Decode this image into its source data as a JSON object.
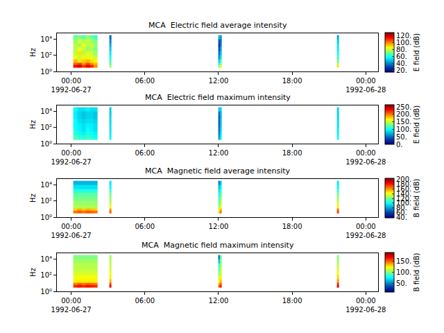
{
  "chart_data": [
    {
      "type": "heatmap",
      "title": "MCA  Electric field average intensity",
      "ylabel": "Hz",
      "colorbar_title": "E field (dB)",
      "log": "y",
      "x": [
        "1992-06-27 00:10",
        "1992-06-27 00:30",
        "1992-06-27 00:50",
        "1992-06-27 01:10",
        "1992-06-27 01:30",
        "1992-06-27 01:50",
        "1992-06-27 02:10",
        "1992-06-27 03:05",
        "1992-06-27 03:15",
        "1992-06-27 12:00",
        "1992-06-27 12:05",
        "1992-06-27 12:10",
        "1992-06-27 12:15",
        "1992-06-27 21:40",
        "1992-06-27 21:50"
      ],
      "y": [
        3,
        6,
        12,
        30,
        100,
        300,
        1000,
        3000,
        10000,
        30000
      ],
      "xlim": [
        "1992-06-26 22:50",
        "1992-06-28 01:00"
      ],
      "xticks": [
        {
          "value": "1992-06-27 00:00",
          "label": "00:00\n1992-06-27"
        },
        {
          "value": "1992-06-27 06:00",
          "label": "06:00"
        },
        {
          "value": "1992-06-27 12:00",
          "label": "12:00"
        },
        {
          "value": "1992-06-27 18:00",
          "label": "18:00"
        },
        {
          "value": "1992-06-28 00:00",
          "label": "00:00\n1992-06-28"
        }
      ],
      "ylim": [
        1,
        50000
      ],
      "yticks": [
        {
          "value": 1,
          "label": "10⁰"
        },
        {
          "value": 100,
          "label": "10²"
        },
        {
          "value": 10000,
          "label": "10⁴"
        }
      ],
      "zlim": [
        15,
        130
      ],
      "zticks": [
        {
          "value": 20,
          "label": "20."
        },
        {
          "value": 40,
          "label": "40."
        },
        {
          "value": 60,
          "label": "60."
        },
        {
          "value": 80,
          "label": "80."
        },
        {
          "value": 100,
          "label": "100."
        },
        {
          "value": 120,
          "label": "120."
        }
      ],
      "z": [
        [
          115,
          120,
          110,
          118,
          112,
          100,
          null,
          75,
          null,
          70,
          80,
          85,
          null,
          90
        ],
        [
          105,
          110,
          100,
          108,
          100,
          95,
          null,
          70,
          null,
          60,
          70,
          75,
          null,
          80
        ],
        [
          95,
          90,
          92,
          95,
          90,
          88,
          null,
          65,
          null,
          50,
          60,
          65,
          null,
          70
        ],
        [
          85,
          80,
          88,
          82,
          85,
          80,
          null,
          60,
          null,
          40,
          50,
          55,
          null,
          65
        ],
        [
          80,
          90,
          78,
          85,
          80,
          75,
          null,
          55,
          null,
          35,
          45,
          50,
          null,
          60
        ],
        [
          78,
          85,
          80,
          75,
          78,
          72,
          null,
          50,
          null,
          30,
          40,
          45,
          null,
          55
        ],
        [
          80,
          75,
          85,
          78,
          80,
          75,
          null,
          45,
          null,
          25,
          35,
          40,
          null,
          55
        ],
        [
          75,
          82,
          78,
          80,
          76,
          72,
          null,
          40,
          null,
          30,
          40,
          35,
          null,
          50
        ],
        [
          70,
          72,
          68,
          75,
          70,
          65,
          null,
          35,
          null,
          45,
          55,
          40,
          null,
          45
        ]
      ]
    },
    {
      "type": "heatmap",
      "title": "MCA  Electric field maximum intensity",
      "ylabel": "Hz",
      "colorbar_title": "E field (dB)",
      "log": "y",
      "x": [
        "1992-06-27 00:10",
        "1992-06-27 00:30",
        "1992-06-27 00:50",
        "1992-06-27 01:10",
        "1992-06-27 01:30",
        "1992-06-27 01:50",
        "1992-06-27 02:10",
        "1992-06-27 03:05",
        "1992-06-27 03:15",
        "1992-06-27 12:00",
        "1992-06-27 12:05",
        "1992-06-27 12:10",
        "1992-06-27 12:15",
        "1992-06-27 21:40",
        "1992-06-27 21:50"
      ],
      "y": [
        3,
        6,
        12,
        30,
        100,
        300,
        1000,
        3000,
        10000,
        30000
      ],
      "xlim": [
        "1992-06-26 22:50",
        "1992-06-28 01:00"
      ],
      "xticks": [
        {
          "value": "1992-06-27 00:00",
          "label": "00:00\n1992-06-27"
        },
        {
          "value": "1992-06-27 06:00",
          "label": "06:00"
        },
        {
          "value": "1992-06-27 12:00",
          "label": "12:00"
        },
        {
          "value": "1992-06-27 18:00",
          "label": "18:00"
        },
        {
          "value": "1992-06-28 00:00",
          "label": "00:00\n1992-06-28"
        }
      ],
      "ylim": [
        1,
        50000
      ],
      "yticks": [
        {
          "value": 1,
          "label": "10⁰"
        },
        {
          "value": 100,
          "label": "10²"
        },
        {
          "value": 10000,
          "label": "10⁴"
        }
      ],
      "zlim": [
        0,
        265
      ],
      "zticks": [
        {
          "value": 0,
          "label": "0."
        },
        {
          "value": 50,
          "label": "50."
        },
        {
          "value": 100,
          "label": "100."
        },
        {
          "value": 150,
          "label": "150."
        },
        {
          "value": 200,
          "label": "200."
        },
        {
          "value": 250,
          "label": "250."
        }
      ],
      "z": [
        [
          120,
          115,
          110,
          115,
          110,
          105,
          null,
          100,
          null,
          60,
          90,
          100,
          null,
          105
        ],
        [
          115,
          110,
          105,
          110,
          105,
          100,
          null,
          95,
          null,
          55,
          85,
          95,
          null,
          100
        ],
        [
          110,
          100,
          95,
          105,
          100,
          95,
          null,
          95,
          null,
          50,
          80,
          90,
          null,
          95
        ],
        [
          105,
          95,
          90,
          100,
          95,
          90,
          null,
          90,
          null,
          45,
          75,
          85,
          null,
          95
        ],
        [
          100,
          95,
          90,
          95,
          95,
          90,
          null,
          90,
          null,
          40,
          70,
          80,
          null,
          90
        ],
        [
          100,
          90,
          85,
          90,
          90,
          85,
          null,
          85,
          null,
          40,
          70,
          80,
          null,
          90
        ],
        [
          95,
          85,
          80,
          85,
          85,
          80,
          null,
          85,
          null,
          40,
          65,
          75,
          null,
          85
        ],
        [
          95,
          85,
          80,
          85,
          85,
          80,
          null,
          80,
          null,
          45,
          70,
          75,
          null,
          85
        ],
        [
          100,
          90,
          90,
          95,
          90,
          90,
          null,
          80,
          null,
          80,
          90,
          85,
          null,
          85
        ]
      ]
    },
    {
      "type": "heatmap",
      "title": "MCA  Magnetic field average intensity",
      "ylabel": "Hz",
      "colorbar_title": "B field (dB)",
      "log": "y",
      "x": [
        "1992-06-27 00:10",
        "1992-06-27 00:30",
        "1992-06-27 00:50",
        "1992-06-27 01:10",
        "1992-06-27 01:30",
        "1992-06-27 01:50",
        "1992-06-27 02:10",
        "1992-06-27 03:05",
        "1992-06-27 03:15",
        "1992-06-27 12:00",
        "1992-06-27 12:05",
        "1992-06-27 12:10",
        "1992-06-27 12:15",
        "1992-06-27 21:40",
        "1992-06-27 21:50"
      ],
      "y": [
        3,
        6,
        12,
        30,
        100,
        300,
        1000,
        3000,
        10000,
        30000
      ],
      "xlim": [
        "1992-06-26 22:50",
        "1992-06-28 01:00"
      ],
      "xticks": [
        {
          "value": "1992-06-27 00:00",
          "label": "00:00\n1992-06-27"
        },
        {
          "value": "1992-06-27 06:00",
          "label": "06:00"
        },
        {
          "value": "1992-06-27 12:00",
          "label": "12:00"
        },
        {
          "value": "1992-06-27 18:00",
          "label": "18:00"
        },
        {
          "value": "1992-06-28 00:00",
          "label": "00:00\n1992-06-28"
        }
      ],
      "ylim": [
        1,
        50000
      ],
      "yticks": [
        {
          "value": 1,
          "label": "10⁰"
        },
        {
          "value": 100,
          "label": "10²"
        },
        {
          "value": 10000,
          "label": "10⁴"
        }
      ],
      "zlim": [
        38,
        205
      ],
      "zticks": [
        {
          "value": 40,
          "label": "40."
        },
        {
          "value": 60,
          "label": "60."
        },
        {
          "value": 80,
          "label": "80."
        },
        {
          "value": 100,
          "label": "100."
        },
        {
          "value": 120,
          "label": "120."
        },
        {
          "value": 140,
          "label": "140."
        },
        {
          "value": 160,
          "label": "160."
        },
        {
          "value": 180,
          "label": "180."
        },
        {
          "value": 200,
          "label": "200."
        }
      ],
      "z": [
        [
          165,
          170,
          165,
          170,
          168,
          165,
          null,
          170,
          null,
          150,
          160,
          165,
          null,
          175
        ],
        [
          150,
          155,
          150,
          155,
          152,
          150,
          null,
          160,
          null,
          140,
          150,
          155,
          null,
          165
        ],
        [
          130,
          128,
          130,
          128,
          130,
          128,
          null,
          140,
          null,
          125,
          135,
          140,
          null,
          145
        ],
        [
          125,
          125,
          125,
          125,
          125,
          125,
          null,
          130,
          null,
          115,
          125,
          130,
          null,
          135
        ],
        [
          120,
          120,
          120,
          120,
          120,
          120,
          null,
          125,
          null,
          110,
          120,
          125,
          null,
          125
        ],
        [
          115,
          115,
          115,
          115,
          115,
          115,
          null,
          120,
          null,
          105,
          110,
          115,
          null,
          120
        ],
        [
          105,
          105,
          105,
          105,
          105,
          105,
          null,
          110,
          null,
          95,
          105,
          110,
          null,
          110
        ],
        [
          95,
          95,
          95,
          95,
          95,
          95,
          null,
          100,
          null,
          85,
          95,
          100,
          null,
          100
        ],
        [
          85,
          85,
          85,
          85,
          85,
          85,
          null,
          95,
          null,
          70,
          85,
          90,
          null,
          95
        ]
      ]
    },
    {
      "type": "heatmap",
      "title": "MCA  Magnetic field maximum intensity",
      "ylabel": "Hz",
      "colorbar_title": "B field (dB)",
      "log": "y",
      "x": [
        "1992-06-27 00:10",
        "1992-06-27 00:30",
        "1992-06-27 00:50",
        "1992-06-27 01:10",
        "1992-06-27 01:30",
        "1992-06-27 01:50",
        "1992-06-27 02:10",
        "1992-06-27 03:05",
        "1992-06-27 03:15",
        "1992-06-27 12:00",
        "1992-06-27 12:05",
        "1992-06-27 12:10",
        "1992-06-27 12:15",
        "1992-06-27 21:40",
        "1992-06-27 21:50"
      ],
      "y": [
        3,
        6,
        12,
        30,
        100,
        300,
        1000,
        3000,
        10000,
        30000
      ],
      "xlim": [
        "1992-06-26 22:50",
        "1992-06-28 01:00"
      ],
      "xticks": [
        {
          "value": "1992-06-27 00:00",
          "label": "00:00\n1992-06-27"
        },
        {
          "value": "1992-06-27 06:00",
          "label": "06:00"
        },
        {
          "value": "1992-06-27 12:00",
          "label": "12:00"
        },
        {
          "value": "1992-06-27 18:00",
          "label": "18:00"
        },
        {
          "value": "1992-06-28 00:00",
          "label": "00:00\n1992-06-28"
        }
      ],
      "ylim": [
        1,
        50000
      ],
      "yticks": [
        {
          "value": 1,
          "label": "10⁰"
        },
        {
          "value": 100,
          "label": "10²"
        },
        {
          "value": 10000,
          "label": "10⁴"
        }
      ],
      "zlim": [
        10,
        190
      ],
      "zticks": [
        {
          "value": 50,
          "label": "50."
        },
        {
          "value": 100,
          "label": "100."
        },
        {
          "value": 150,
          "label": "150."
        }
      ],
      "z": [
        [
          160,
          165,
          160,
          165,
          162,
          160,
          null,
          170,
          null,
          150,
          160,
          165,
          null,
          175
        ],
        [
          145,
          150,
          145,
          150,
          148,
          145,
          null,
          155,
          null,
          135,
          145,
          150,
          null,
          160
        ],
        [
          125,
          125,
          125,
          125,
          125,
          125,
          null,
          135,
          null,
          120,
          130,
          135,
          null,
          140
        ],
        [
          120,
          120,
          120,
          120,
          120,
          120,
          null,
          125,
          null,
          110,
          120,
          125,
          null,
          130
        ],
        [
          115,
          115,
          115,
          115,
          115,
          115,
          null,
          120,
          null,
          100,
          110,
          115,
          null,
          120
        ],
        [
          110,
          110,
          110,
          110,
          110,
          110,
          null,
          115,
          null,
          90,
          105,
          110,
          null,
          115
        ],
        [
          110,
          110,
          110,
          110,
          110,
          110,
          null,
          110,
          null,
          80,
          100,
          105,
          null,
          110
        ],
        [
          105,
          105,
          105,
          105,
          105,
          105,
          null,
          110,
          null,
          60,
          90,
          100,
          null,
          105
        ],
        [
          100,
          100,
          100,
          100,
          100,
          100,
          null,
          105,
          null,
          40,
          80,
          95,
          null,
          100
        ]
      ]
    }
  ]
}
